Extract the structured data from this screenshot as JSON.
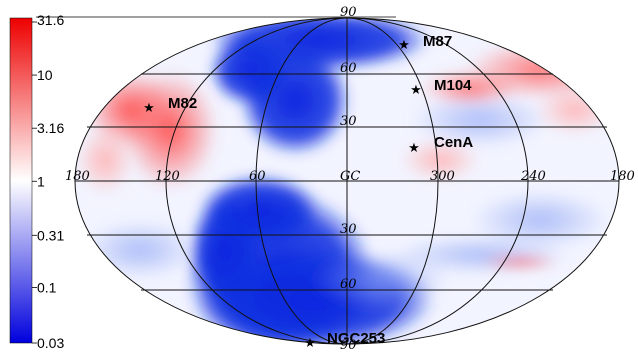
{
  "colorbar": {
    "ticks": [
      {
        "label": "31.6",
        "value": 31.6
      },
      {
        "label": "10",
        "value": 10
      },
      {
        "label": "3.16",
        "value": 3.16
      },
      {
        "label": "1",
        "value": 1
      },
      {
        "label": "0.31",
        "value": 0.31
      },
      {
        "label": "0.1",
        "value": 0.1
      },
      {
        "label": "0.03",
        "value": 0.03
      }
    ],
    "colors": {
      "high": "#ee0000",
      "mid": "#ffffff",
      "low": "#0000dd"
    }
  },
  "projection": "Aitoff/Hammer all-sky, galactic coordinates",
  "longitude_labels": [
    {
      "text": "180",
      "lon": 180
    },
    {
      "text": "120",
      "lon": 120
    },
    {
      "text": "60",
      "lon": 60
    },
    {
      "text": "GC",
      "lon": 0
    },
    {
      "text": "300",
      "lon": -60
    },
    {
      "text": "240",
      "lon": -120
    },
    {
      "text": "180",
      "lon": -180
    }
  ],
  "latitude_labels": [
    {
      "text": "90",
      "lat": 90
    },
    {
      "text": "60",
      "lat": 60
    },
    {
      "text": "30",
      "lat": 30
    },
    {
      "text": "30",
      "lat": -30
    },
    {
      "text": "60",
      "lat": -60
    },
    {
      "text": "90",
      "lat": -90
    }
  ],
  "sources": [
    {
      "name": "M87",
      "lon": -76,
      "lat": 75
    },
    {
      "name": "M104",
      "lon": -62,
      "lat": 51
    },
    {
      "name": "M82",
      "lon": 141,
      "lat": 41
    },
    {
      "name": "CenA",
      "lon": -50,
      "lat": 19
    },
    {
      "name": "NGC253",
      "lon": 97,
      "lat": -88
    }
  ]
}
